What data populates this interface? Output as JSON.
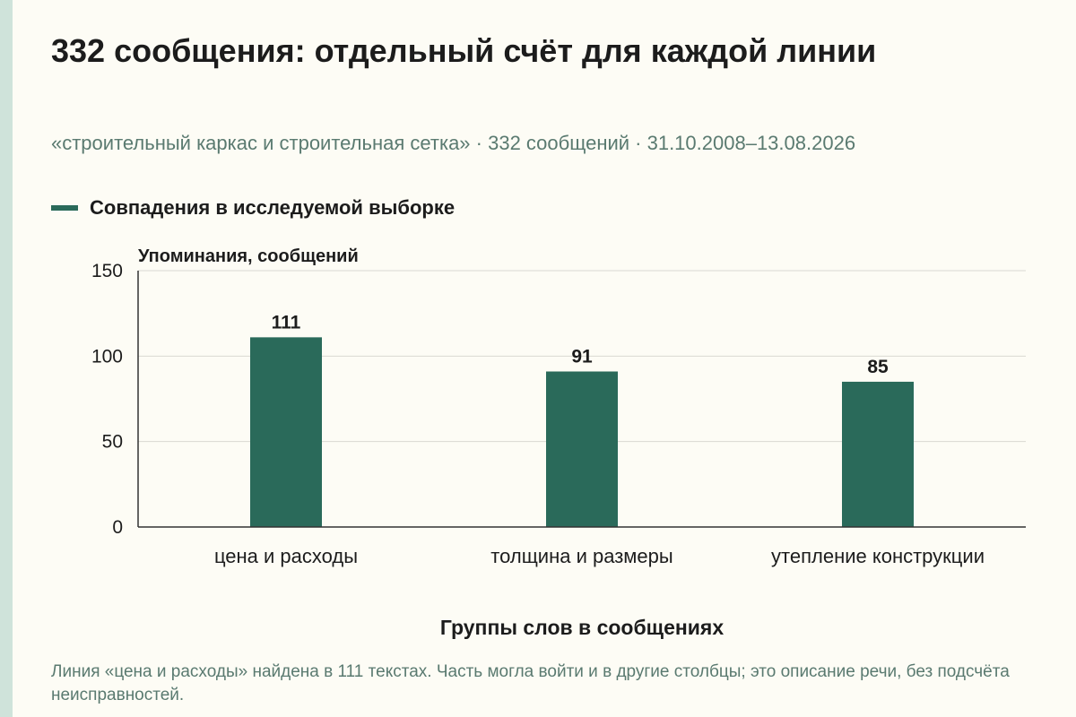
{
  "title": "332 сообщения: отдельный счёт для каждой линии",
  "subtitle": "«строительный каркас и строительная сетка» · 332 сообщений · 31.10.2008–13.08.2026",
  "note": "Линия «цена и расходы» найдена в 111 текстах. Часть могла войти и в другие столбцы; это описание речи, без подсчёта неисправностей.",
  "colors": {
    "bar": "#2a6a5a",
    "background": "#fdfcf5",
    "text": "#1c1c1c",
    "muted": "#5a7a70",
    "grid": "#d9d9d2"
  },
  "chart_data": {
    "type": "bar",
    "categories": [
      "цена и расходы",
      "толщина и размеры",
      "утепление конструкции"
    ],
    "series": [
      {
        "name": "Совпадения в исследуемой выборке",
        "values": [
          111,
          91,
          85
        ]
      }
    ],
    "ylabel": "Упоминания, сообщений",
    "xlabel": "Группы слов в сообщениях",
    "ylim": [
      0,
      150
    ],
    "yticks": [
      0,
      50,
      100,
      150
    ],
    "grid": true,
    "legend_position": "top-left",
    "data_labels": true
  }
}
